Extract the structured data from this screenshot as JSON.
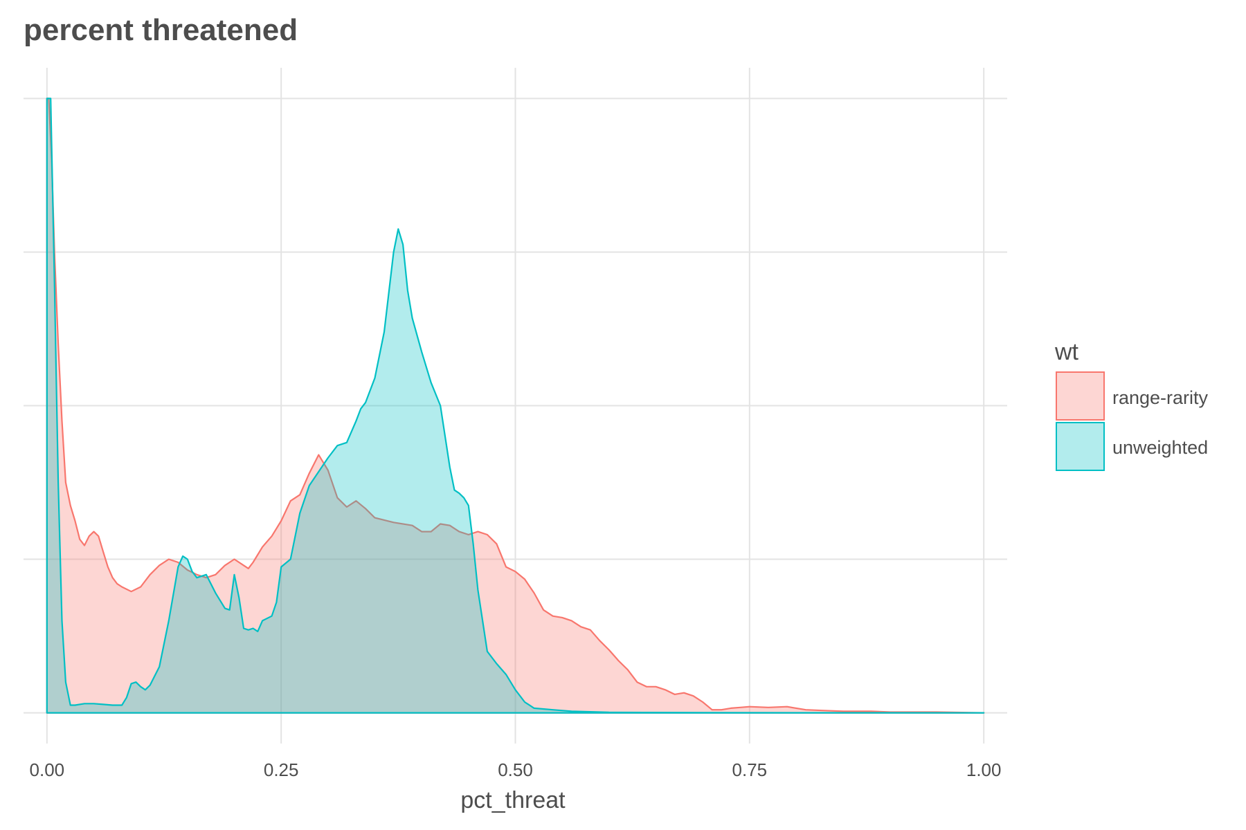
{
  "chart_data": {
    "type": "area",
    "title": "percent threatened",
    "xlabel": "pct_threat",
    "ylabel": "",
    "xlim": [
      -0.025,
      1.025
    ],
    "ylim": [
      -0.2,
      4.2
    ],
    "x_ticks": [
      0,
      0.25,
      0.5,
      0.75,
      1.0
    ],
    "x_tick_labels": [
      "0.00",
      "0.25",
      "0.50",
      "0.75",
      "1.00"
    ],
    "y_gridlines": [
      0,
      1,
      2,
      3,
      4
    ],
    "grid": true,
    "legend": {
      "title": "wt",
      "position": "right"
    },
    "series": [
      {
        "name": "range-rarity",
        "stroke": "#F8766D",
        "fill": "#F8766D",
        "fill_opacity": 0.3,
        "points": [
          [
            0,
            0
          ],
          [
            0,
            4.0
          ],
          [
            0.002,
            4.0
          ],
          [
            0.005,
            3.6
          ],
          [
            0.008,
            3.0
          ],
          [
            0.012,
            2.4
          ],
          [
            0.016,
            1.9
          ],
          [
            0.02,
            1.5
          ],
          [
            0.025,
            1.35
          ],
          [
            0.03,
            1.25
          ],
          [
            0.035,
            1.13
          ],
          [
            0.04,
            1.09
          ],
          [
            0.045,
            1.15
          ],
          [
            0.05,
            1.18
          ],
          [
            0.055,
            1.15
          ],
          [
            0.06,
            1.05
          ],
          [
            0.065,
            0.95
          ],
          [
            0.07,
            0.88
          ],
          [
            0.075,
            0.84
          ],
          [
            0.08,
            0.82
          ],
          [
            0.09,
            0.79
          ],
          [
            0.1,
            0.82
          ],
          [
            0.11,
            0.9
          ],
          [
            0.12,
            0.96
          ],
          [
            0.13,
            1.0
          ],
          [
            0.14,
            0.98
          ],
          [
            0.15,
            0.93
          ],
          [
            0.16,
            0.9
          ],
          [
            0.17,
            0.88
          ],
          [
            0.18,
            0.9
          ],
          [
            0.19,
            0.96
          ],
          [
            0.2,
            1.0
          ],
          [
            0.21,
            0.96
          ],
          [
            0.215,
            0.94
          ],
          [
            0.22,
            0.98
          ],
          [
            0.23,
            1.08
          ],
          [
            0.24,
            1.15
          ],
          [
            0.25,
            1.25
          ],
          [
            0.26,
            1.38
          ],
          [
            0.27,
            1.42
          ],
          [
            0.28,
            1.56
          ],
          [
            0.29,
            1.68
          ],
          [
            0.3,
            1.58
          ],
          [
            0.31,
            1.4
          ],
          [
            0.32,
            1.34
          ],
          [
            0.33,
            1.38
          ],
          [
            0.34,
            1.33
          ],
          [
            0.35,
            1.27
          ],
          [
            0.37,
            1.24
          ],
          [
            0.39,
            1.22
          ],
          [
            0.4,
            1.18
          ],
          [
            0.41,
            1.18
          ],
          [
            0.42,
            1.23
          ],
          [
            0.43,
            1.22
          ],
          [
            0.44,
            1.18
          ],
          [
            0.45,
            1.16
          ],
          [
            0.46,
            1.18
          ],
          [
            0.47,
            1.16
          ],
          [
            0.48,
            1.1
          ],
          [
            0.49,
            0.95
          ],
          [
            0.5,
            0.92
          ],
          [
            0.51,
            0.87
          ],
          [
            0.52,
            0.78
          ],
          [
            0.53,
            0.67
          ],
          [
            0.54,
            0.63
          ],
          [
            0.55,
            0.62
          ],
          [
            0.56,
            0.6
          ],
          [
            0.57,
            0.56
          ],
          [
            0.58,
            0.54
          ],
          [
            0.59,
            0.47
          ],
          [
            0.6,
            0.41
          ],
          [
            0.61,
            0.34
          ],
          [
            0.62,
            0.28
          ],
          [
            0.63,
            0.2
          ],
          [
            0.64,
            0.17
          ],
          [
            0.65,
            0.17
          ],
          [
            0.66,
            0.15
          ],
          [
            0.67,
            0.12
          ],
          [
            0.68,
            0.13
          ],
          [
            0.69,
            0.11
          ],
          [
            0.7,
            0.07
          ],
          [
            0.71,
            0.02
          ],
          [
            0.72,
            0.02
          ],
          [
            0.73,
            0.03
          ],
          [
            0.74,
            0.035
          ],
          [
            0.75,
            0.04
          ],
          [
            0.77,
            0.035
          ],
          [
            0.79,
            0.04
          ],
          [
            0.81,
            0.02
          ],
          [
            0.83,
            0.015
          ],
          [
            0.85,
            0.01
          ],
          [
            0.88,
            0.01
          ],
          [
            0.9,
            0.005
          ],
          [
            0.93,
            0.005
          ],
          [
            0.95,
            0.005
          ],
          [
            1.0,
            0
          ]
        ]
      },
      {
        "name": "unweighted",
        "stroke": "#00BFC4",
        "fill": "#00BFC4",
        "fill_opacity": 0.3,
        "points": [
          [
            0,
            0
          ],
          [
            0,
            4.0
          ],
          [
            0.004,
            4.0
          ],
          [
            0.008,
            2.8
          ],
          [
            0.012,
            1.5
          ],
          [
            0.016,
            0.6
          ],
          [
            0.02,
            0.2
          ],
          [
            0.025,
            0.05
          ],
          [
            0.03,
            0.05
          ],
          [
            0.04,
            0.06
          ],
          [
            0.05,
            0.06
          ],
          [
            0.06,
            0.055
          ],
          [
            0.07,
            0.05
          ],
          [
            0.08,
            0.05
          ],
          [
            0.085,
            0.1
          ],
          [
            0.09,
            0.19
          ],
          [
            0.095,
            0.2
          ],
          [
            0.1,
            0.17
          ],
          [
            0.105,
            0.15
          ],
          [
            0.11,
            0.18
          ],
          [
            0.12,
            0.3
          ],
          [
            0.13,
            0.6
          ],
          [
            0.14,
            0.95
          ],
          [
            0.145,
            1.02
          ],
          [
            0.15,
            1.0
          ],
          [
            0.155,
            0.92
          ],
          [
            0.16,
            0.88
          ],
          [
            0.17,
            0.9
          ],
          [
            0.18,
            0.78
          ],
          [
            0.19,
            0.68
          ],
          [
            0.195,
            0.67
          ],
          [
            0.2,
            0.9
          ],
          [
            0.205,
            0.75
          ],
          [
            0.21,
            0.55
          ],
          [
            0.215,
            0.54
          ],
          [
            0.22,
            0.55
          ],
          [
            0.225,
            0.53
          ],
          [
            0.23,
            0.6
          ],
          [
            0.24,
            0.63
          ],
          [
            0.245,
            0.72
          ],
          [
            0.25,
            0.95
          ],
          [
            0.26,
            1.0
          ],
          [
            0.27,
            1.3
          ],
          [
            0.28,
            1.48
          ],
          [
            0.29,
            1.57
          ],
          [
            0.3,
            1.66
          ],
          [
            0.31,
            1.74
          ],
          [
            0.32,
            1.76
          ],
          [
            0.33,
            1.9
          ],
          [
            0.335,
            1.98
          ],
          [
            0.34,
            2.02
          ],
          [
            0.35,
            2.18
          ],
          [
            0.36,
            2.48
          ],
          [
            0.37,
            3.0
          ],
          [
            0.375,
            3.15
          ],
          [
            0.38,
            3.05
          ],
          [
            0.385,
            2.75
          ],
          [
            0.39,
            2.57
          ],
          [
            0.4,
            2.35
          ],
          [
            0.41,
            2.15
          ],
          [
            0.42,
            2.0
          ],
          [
            0.43,
            1.6
          ],
          [
            0.435,
            1.45
          ],
          [
            0.44,
            1.43
          ],
          [
            0.445,
            1.4
          ],
          [
            0.45,
            1.35
          ],
          [
            0.455,
            1.1
          ],
          [
            0.46,
            0.8
          ],
          [
            0.47,
            0.4
          ],
          [
            0.48,
            0.32
          ],
          [
            0.49,
            0.25
          ],
          [
            0.5,
            0.15
          ],
          [
            0.51,
            0.07
          ],
          [
            0.52,
            0.03
          ],
          [
            0.54,
            0.02
          ],
          [
            0.56,
            0.01
          ],
          [
            0.6,
            0.003
          ],
          [
            0.7,
            0.001
          ],
          [
            1.0,
            0
          ]
        ]
      }
    ]
  }
}
